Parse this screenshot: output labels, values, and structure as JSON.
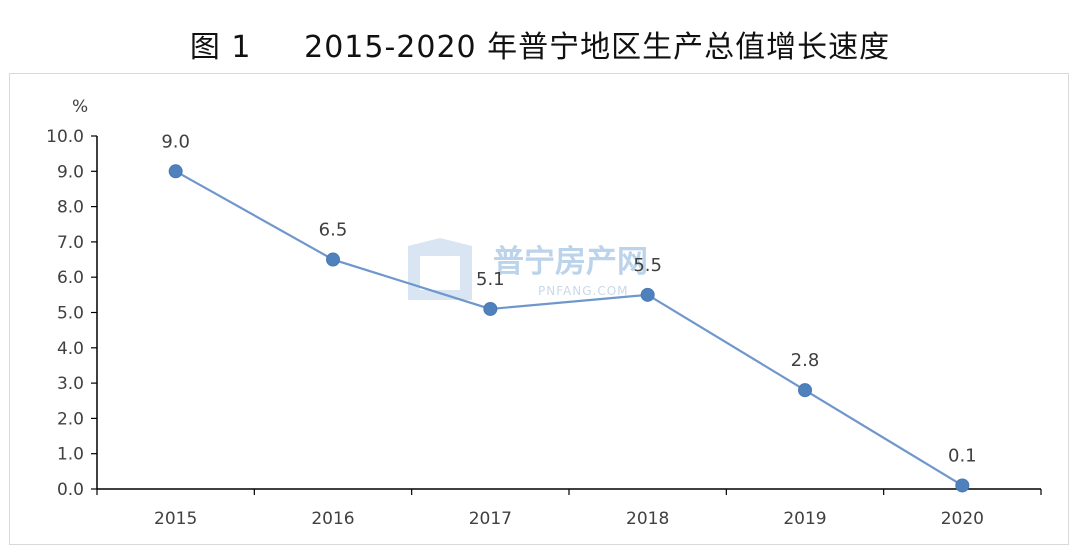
{
  "title": "图 1     2015-2020 年普宁地区生产总值增长速度",
  "watermark": {
    "text": "普宁房产网",
    "subtext": "PNFANG.COM"
  },
  "colors": {
    "line": "#6f97cc",
    "marker": "#4f81bd",
    "axis": "#000000",
    "text": "#404040"
  },
  "chart_data": {
    "type": "line",
    "title": "图 1     2015-2020 年普宁地区生产总值增长速度",
    "ylabel": "%",
    "xlabel": "",
    "categories": [
      "2015",
      "2016",
      "2017",
      "2018",
      "2019",
      "2020"
    ],
    "values": [
      9.0,
      6.5,
      5.1,
      5.5,
      2.8,
      0.1
    ],
    "data_labels": [
      "9.0",
      "6.5",
      "5.1",
      "5.5",
      "2.8",
      "0.1"
    ],
    "ylim": [
      0,
      10
    ],
    "yticks": [
      "0.0",
      "1.0",
      "2.0",
      "3.0",
      "4.0",
      "5.0",
      "6.0",
      "7.0",
      "8.0",
      "9.0",
      "10.0"
    ],
    "grid": false,
    "legend": "none"
  }
}
